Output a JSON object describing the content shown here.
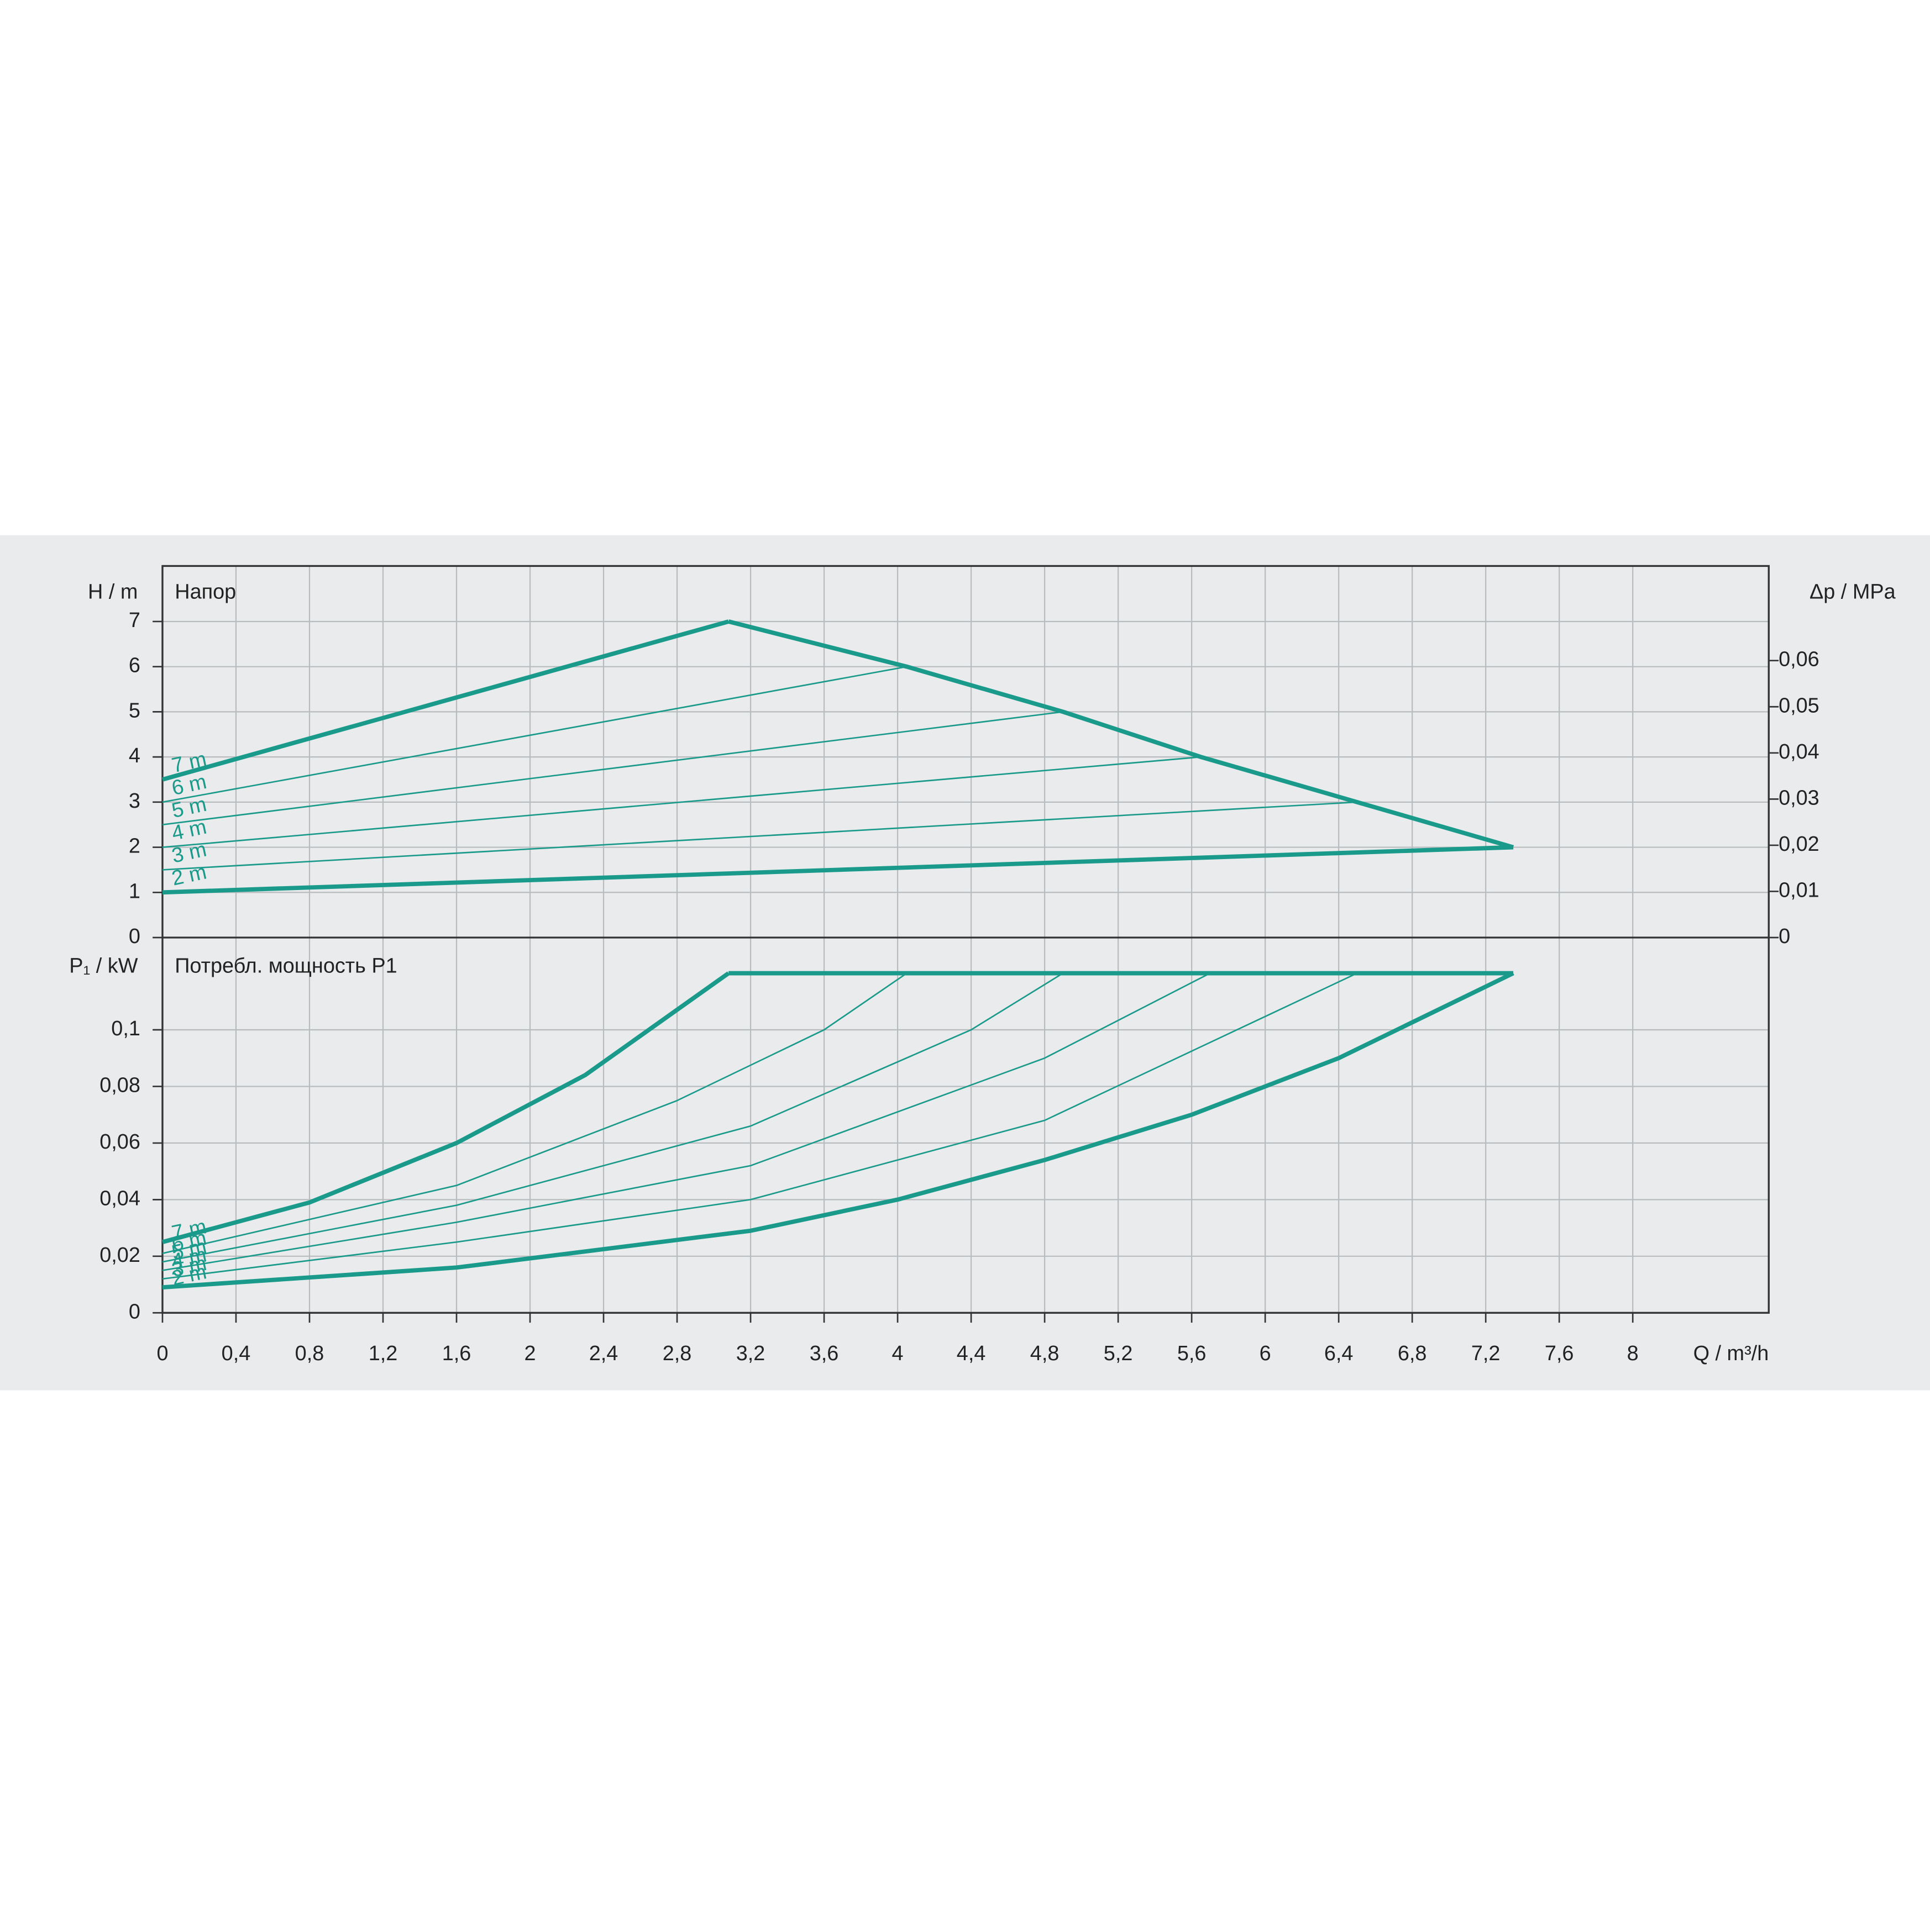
{
  "chart_data": [
    {
      "type": "line",
      "title": "Напор",
      "ylabel": "H / m",
      "y2label": "Δp / MPa",
      "xlim": [
        0,
        8.74
      ],
      "ylim": [
        0,
        8.23
      ],
      "yticks": [
        0,
        1,
        2,
        3,
        4,
        5,
        6,
        7
      ],
      "y2lim": [
        0,
        0.0805
      ],
      "y2ticks": [
        0,
        {
          "value": 0.01,
          "label": "0,01"
        },
        {
          "value": 0.02,
          "label": "0,02"
        },
        {
          "value": 0.03,
          "label": "0,03"
        },
        {
          "value": 0.04,
          "label": "0,04"
        },
        {
          "value": 0.05,
          "label": "0,05"
        },
        {
          "value": 0.06,
          "label": "0,06"
        }
      ],
      "grid": true,
      "series": [
        {
          "name": "7 m",
          "color": "#1a9a8a",
          "linewidth": 3.5,
          "x": [
            0,
            3.08
          ],
          "values": [
            3.5,
            7
          ]
        },
        {
          "name": "6 m",
          "color": "#1a9a8a",
          "linewidth": 1.2,
          "x": [
            0,
            4.05
          ],
          "values": [
            3.0,
            6
          ]
        },
        {
          "name": "5 m",
          "color": "#1a9a8a",
          "linewidth": 1.2,
          "x": [
            0,
            4.9
          ],
          "values": [
            2.5,
            5
          ]
        },
        {
          "name": "4 m",
          "color": "#1a9a8a",
          "linewidth": 1.2,
          "x": [
            0,
            5.65
          ],
          "values": [
            2.0,
            4
          ]
        },
        {
          "name": "3 m",
          "color": "#1a9a8a",
          "linewidth": 1.2,
          "x": [
            0,
            6.5
          ],
          "values": [
            1.5,
            3
          ]
        },
        {
          "name": "2 m",
          "color": "#1a9a8a",
          "linewidth": 3.5,
          "x": [
            0,
            7.35
          ],
          "values": [
            1.0,
            2
          ]
        },
        {
          "color": "#1a9a8a",
          "linewidth": 3.5,
          "x": [
            3.08,
            4.05,
            4.9,
            5.65,
            6.5,
            7.35
          ],
          "values": [
            7,
            6,
            5,
            4,
            3,
            2
          ]
        }
      ]
    },
    {
      "type": "line",
      "title": "Потребл. мощность P1",
      "ylabel": "P₁ / kW",
      "xlabel": "Q / m³/h",
      "xlim": [
        0,
        8.74
      ],
      "xticks": [
        0,
        {
          "value": 0.4,
          "label": "0,4"
        },
        {
          "value": 0.8,
          "label": "0,8"
        },
        {
          "value": 1.2,
          "label": "1,2"
        },
        {
          "value": 1.6,
          "label": "1,6"
        },
        2,
        {
          "value": 2.4,
          "label": "2,4"
        },
        {
          "value": 2.8,
          "label": "2,8"
        },
        {
          "value": 3.2,
          "label": "3,2"
        },
        {
          "value": 3.6,
          "label": "3,6"
        },
        4,
        {
          "value": 4.4,
          "label": "4,4"
        },
        {
          "value": 4.8,
          "label": "4,8"
        },
        {
          "value": 5.2,
          "label": "5,2"
        },
        {
          "value": 5.6,
          "label": "5,6"
        },
        6,
        {
          "value": 6.4,
          "label": "6,4"
        },
        {
          "value": 6.8,
          "label": "6,8"
        },
        {
          "value": 7.2,
          "label": "7,2"
        },
        {
          "value": 7.6,
          "label": "7,6"
        },
        8
      ],
      "ylim": [
        0,
        0.1326
      ],
      "yticks": [
        0,
        {
          "value": 0.02,
          "label": "0,02"
        },
        {
          "value": 0.04,
          "label": "0,04"
        },
        {
          "value": 0.06,
          "label": "0,06"
        },
        {
          "value": 0.08,
          "label": "0,08"
        },
        {
          "value": 0.1,
          "label": "0,1"
        }
      ],
      "grid": true,
      "series": [
        {
          "name": "7 m",
          "color": "#1a9a8a",
          "linewidth": 3.5,
          "x": [
            0,
            0.8,
            1.6,
            2.3,
            3.08
          ],
          "values": [
            0.025,
            0.039,
            0.06,
            0.084,
            0.12
          ]
        },
        {
          "name": "6 m",
          "color": "#1a9a8a",
          "linewidth": 1.2,
          "x": [
            0,
            1.6,
            2.8,
            3.6,
            4.05
          ],
          "values": [
            0.021,
            0.045,
            0.075,
            0.1,
            0.12
          ]
        },
        {
          "name": "5 m",
          "color": "#1a9a8a",
          "linewidth": 1.2,
          "x": [
            0,
            1.6,
            3.2,
            4.4,
            4.9
          ],
          "values": [
            0.018,
            0.038,
            0.066,
            0.1,
            0.12
          ]
        },
        {
          "name": "4 m",
          "color": "#1a9a8a",
          "linewidth": 1.2,
          "x": [
            0,
            1.6,
            3.2,
            4.8,
            5.7
          ],
          "values": [
            0.015,
            0.032,
            0.052,
            0.09,
            0.12
          ]
        },
        {
          "name": "3 m",
          "color": "#1a9a8a",
          "linewidth": 1.2,
          "x": [
            0,
            1.6,
            3.2,
            4.8,
            6.5
          ],
          "values": [
            0.012,
            0.025,
            0.04,
            0.068,
            0.12
          ]
        },
        {
          "name": "2 m",
          "color": "#1a9a8a",
          "linewidth": 3.5,
          "x": [
            0,
            1.6,
            3.2,
            4,
            4.8,
            5.6,
            6.4,
            7.35
          ],
          "values": [
            0.009,
            0.016,
            0.029,
            0.04,
            0.054,
            0.07,
            0.09,
            0.12
          ]
        },
        {
          "color": "#1a9a8a",
          "linewidth": 3.5,
          "x": [
            3.08,
            7.35
          ],
          "values": [
            0.12,
            0.12
          ]
        }
      ]
    }
  ]
}
